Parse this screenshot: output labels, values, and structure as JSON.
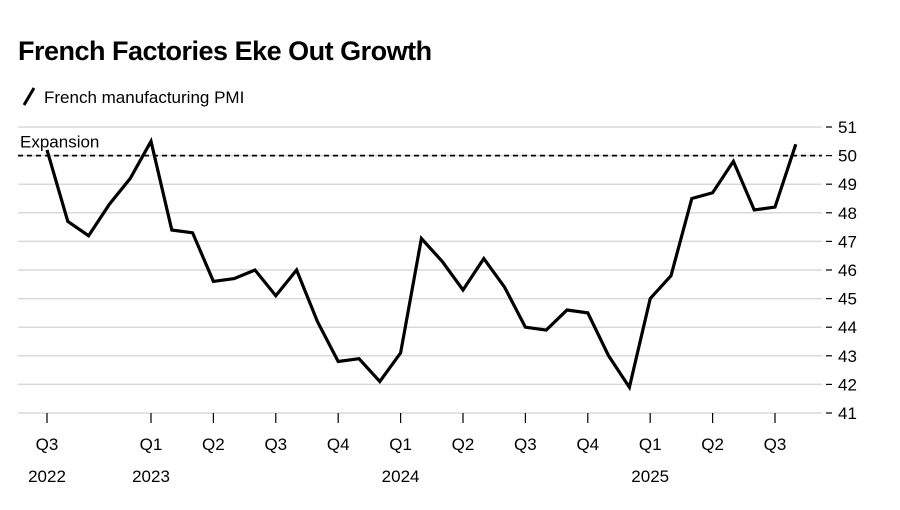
{
  "chart_data": {
    "type": "line",
    "title": "French Factories Eke Out Growth",
    "categories": [
      "Q3",
      null,
      null,
      null,
      null,
      "Q1",
      null,
      null,
      "Q2",
      null,
      null,
      "Q3",
      null,
      null,
      "Q4",
      null,
      null,
      "Q1",
      null,
      null,
      "Q2",
      null,
      null,
      "Q3",
      null,
      null,
      "Q4",
      null,
      null,
      "Q1",
      null,
      null,
      "Q2",
      null,
      null,
      "Q3",
      null
    ],
    "category_years": [
      "2022",
      null,
      null,
      null,
      null,
      "2023",
      null,
      null,
      null,
      null,
      null,
      null,
      null,
      null,
      null,
      null,
      null,
      "2024",
      null,
      null,
      null,
      null,
      null,
      null,
      null,
      null,
      null,
      null,
      null,
      "2025",
      null,
      null,
      null,
      null,
      null,
      null,
      null
    ],
    "series": [
      {
        "name": "French manufacturing PMI",
        "color": "#000000",
        "values": [
          50.2,
          47.7,
          47.2,
          48.3,
          49.2,
          50.5,
          47.4,
          47.3,
          45.6,
          45.7,
          46.0,
          45.1,
          46.0,
          44.2,
          42.8,
          42.9,
          42.1,
          43.1,
          47.1,
          46.3,
          45.3,
          46.4,
          45.4,
          44.0,
          43.9,
          44.6,
          44.5,
          43.0,
          41.9,
          45.0,
          45.8,
          48.5,
          48.7,
          49.8,
          48.1,
          48.2,
          50.4
        ]
      }
    ],
    "reference_line": {
      "value": 50,
      "label": "Expansion"
    },
    "ylim": [
      41,
      51
    ],
    "yticks": [
      41,
      42,
      43,
      44,
      45,
      46,
      47,
      48,
      49,
      50,
      51
    ],
    "grid": true
  }
}
